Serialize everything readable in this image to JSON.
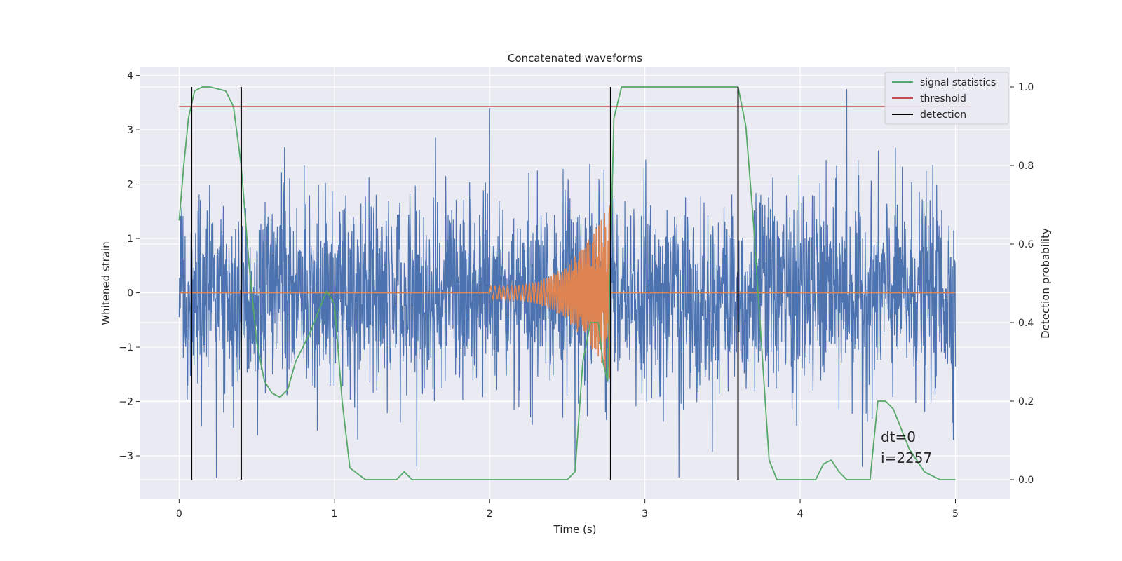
{
  "chart_data": {
    "type": "line",
    "title": "Concatenated waveforms",
    "xlabel": "Time (s)",
    "ylabel_left": "Whitened strain",
    "ylabel_right": "Detection probability",
    "xlim": [
      -0.25,
      5.35
    ],
    "ylim_left": [
      -3.8,
      4.15
    ],
    "ylim_right": [
      -0.05,
      1.05
    ],
    "x_ticks": [
      0,
      1,
      2,
      3,
      4,
      5
    ],
    "y_ticks_left": [
      -3,
      -2,
      -1,
      0,
      1,
      2,
      3,
      4
    ],
    "y_ticks_right": [
      0.0,
      0.2,
      0.4,
      0.6,
      0.8,
      1.0
    ],
    "x_tick_labels": [
      "0",
      "1",
      "2",
      "3",
      "4",
      "5"
    ],
    "y_tick_labels_left": [
      "−3",
      "−2",
      "−1",
      "0",
      "1",
      "2",
      "3",
      "4"
    ],
    "y_tick_labels_right": [
      "0.0",
      "0.2",
      "0.4",
      "0.6",
      "0.8",
      "1.0"
    ],
    "grid": true,
    "background": "#eaeaf2",
    "legend_position": "top-right",
    "series": [
      {
        "name": "",
        "kind": "noisy whitened strain (approx. Gaussian, std ~0.9, range -3.4 to 3.8)",
        "axis": "left",
        "color": "#4c72b0",
        "x_range": [
          0,
          5
        ],
        "std": 0.9,
        "peaks": [
          [
            2.0,
            3.4
          ],
          [
            4.3,
            3.75
          ],
          [
            2.55,
            -3.3
          ],
          [
            3.22,
            -3.4
          ],
          [
            4.4,
            -3.2
          ],
          [
            0.24,
            -3.4
          ],
          [
            1.53,
            -3.2
          ]
        ]
      },
      {
        "name": "",
        "kind": "injected chirp waveform",
        "axis": "left",
        "color": "#dd8452",
        "x_range": [
          0,
          5
        ],
        "chirp_start": 2.0,
        "chirp_end": 2.78,
        "start_amplitude": 0.12,
        "peak_amplitude": 1.7
      },
      {
        "name": "signal statistics",
        "axis": "right",
        "color": "#55a868",
        "x": [
          0.0,
          0.03,
          0.06,
          0.1,
          0.15,
          0.2,
          0.3,
          0.35,
          0.4,
          0.45,
          0.5,
          0.55,
          0.6,
          0.65,
          0.7,
          0.75,
          0.8,
          0.85,
          0.9,
          0.95,
          1.0,
          1.05,
          1.1,
          1.2,
          1.4,
          1.45,
          1.5,
          1.6,
          2.0,
          2.4,
          2.5,
          2.55,
          2.6,
          2.65,
          2.7,
          2.73,
          2.76,
          2.8,
          2.85,
          3.0,
          3.3,
          3.5,
          3.6,
          3.65,
          3.7,
          3.75,
          3.8,
          3.85,
          4.0,
          4.1,
          4.15,
          4.2,
          4.25,
          4.3,
          4.35,
          4.4,
          4.45,
          4.5,
          4.55,
          4.6,
          4.7,
          4.8,
          4.85,
          4.9,
          5.0
        ],
        "y": [
          0.66,
          0.8,
          0.92,
          0.99,
          1.0,
          1.0,
          0.99,
          0.95,
          0.8,
          0.55,
          0.35,
          0.25,
          0.22,
          0.21,
          0.23,
          0.3,
          0.34,
          0.38,
          0.43,
          0.48,
          0.45,
          0.2,
          0.03,
          0.0,
          0.0,
          0.02,
          0.0,
          0.0,
          0.0,
          0.0,
          0.0,
          0.02,
          0.3,
          0.4,
          0.4,
          0.3,
          0.25,
          0.92,
          1.0,
          1.0,
          1.0,
          1.0,
          1.0,
          0.9,
          0.65,
          0.35,
          0.05,
          0.0,
          0.0,
          0.0,
          0.04,
          0.05,
          0.02,
          0.0,
          0.0,
          0.0,
          0.0,
          0.2,
          0.2,
          0.18,
          0.08,
          0.02,
          0.01,
          0.0,
          0.0
        ]
      },
      {
        "name": "threshold",
        "axis": "right",
        "color": "#c44e52",
        "x": [
          0,
          5.1
        ],
        "y": [
          0.95,
          0.95
        ]
      },
      {
        "name": "detection",
        "axis": "right",
        "color": "#000000",
        "vlines_x": [
          0.08,
          0.4,
          2.78,
          3.6
        ],
        "ymin": 0.0,
        "ymax": 1.0
      }
    ],
    "annotation": [
      "dt=0",
      "i=2257"
    ]
  }
}
